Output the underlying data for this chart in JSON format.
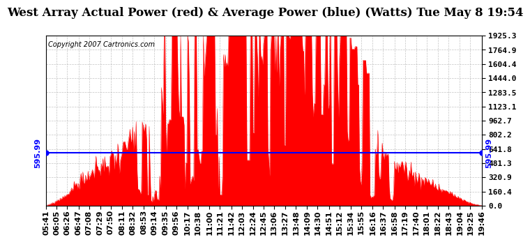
{
  "title": "West Array Actual Power (red) & Average Power (blue) (Watts) Tue May 8 19:54",
  "copyright": "Copyright 2007 Cartronics.com",
  "avg_power": 595.99,
  "y_max": 1925.3,
  "y_min": 0.0,
  "ytick_values": [
    0.0,
    160.4,
    320.9,
    481.3,
    641.8,
    802.2,
    962.7,
    1123.1,
    1283.5,
    1444.0,
    1604.4,
    1764.9,
    1925.3
  ],
  "ytick_labels": [
    "0.0",
    "160.4",
    "320.9",
    "481.3",
    "641.8",
    "802.2",
    "962.7",
    "1123.1",
    "1283.5",
    "1444.0",
    "1604.4",
    "1764.9",
    "1925.3"
  ],
  "x_labels": [
    "05:41",
    "06:05",
    "06:26",
    "06:47",
    "07:08",
    "07:29",
    "07:50",
    "08:11",
    "08:32",
    "08:53",
    "09:14",
    "09:35",
    "09:56",
    "10:17",
    "10:38",
    "11:00",
    "11:21",
    "11:42",
    "12:03",
    "12:24",
    "12:45",
    "13:06",
    "13:27",
    "13:48",
    "14:09",
    "14:30",
    "14:51",
    "15:12",
    "15:34",
    "15:55",
    "16:16",
    "16:37",
    "16:58",
    "17:19",
    "17:40",
    "18:01",
    "18:22",
    "18:43",
    "19:04",
    "19:25",
    "19:46"
  ],
  "bar_color": "#ff0000",
  "line_color": "#0000ff",
  "grid_color": "#aaaaaa",
  "background_color": "#ffffff",
  "plot_bg_color": "#ffffff",
  "title_fontsize": 12,
  "tick_fontsize": 8,
  "copy_fontsize": 7
}
